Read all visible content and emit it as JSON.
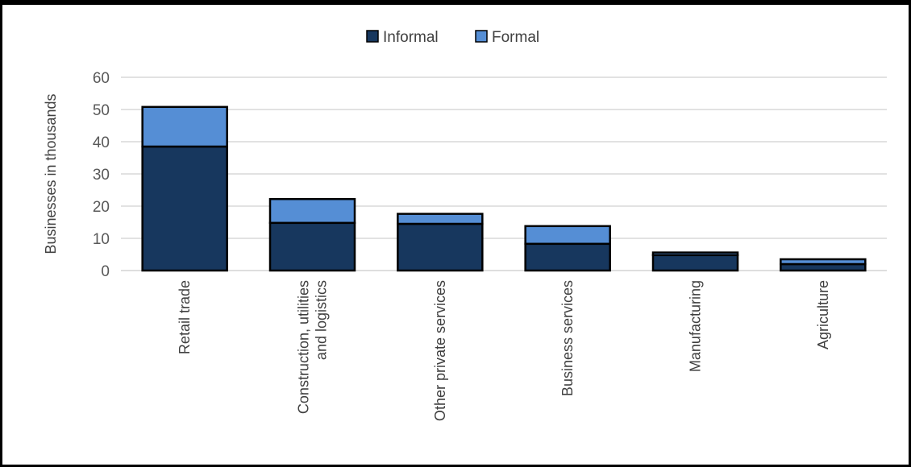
{
  "chart_data": {
    "type": "bar",
    "stacked": true,
    "categories": [
      "Retail trade",
      "Construction, utilities and logistics",
      "Other private services",
      "Business services",
      "Manufacturing",
      "Agriculture"
    ],
    "category_lines": [
      [
        "Retail trade"
      ],
      [
        "Construction, utilities",
        "and logistics"
      ],
      [
        "Other private services"
      ],
      [
        "Business services"
      ],
      [
        "Manufacturing"
      ],
      [
        "Agriculture"
      ]
    ],
    "series": [
      {
        "name": "Informal",
        "color": "#17375e",
        "values": [
          38.5,
          14.8,
          14.5,
          8.3,
          4.8,
          2.0
        ]
      },
      {
        "name": "Formal",
        "color": "#558ed5",
        "values": [
          12.3,
          7.4,
          3.1,
          5.5,
          0.8,
          1.5
        ]
      }
    ],
    "xlabel": "",
    "ylabel": "Businesses in thousands",
    "ylim": [
      0,
      60
    ],
    "yticks": [
      "0",
      "10",
      "20",
      "30",
      "40",
      "50",
      "60"
    ],
    "grid": true,
    "legend_position": "top"
  }
}
